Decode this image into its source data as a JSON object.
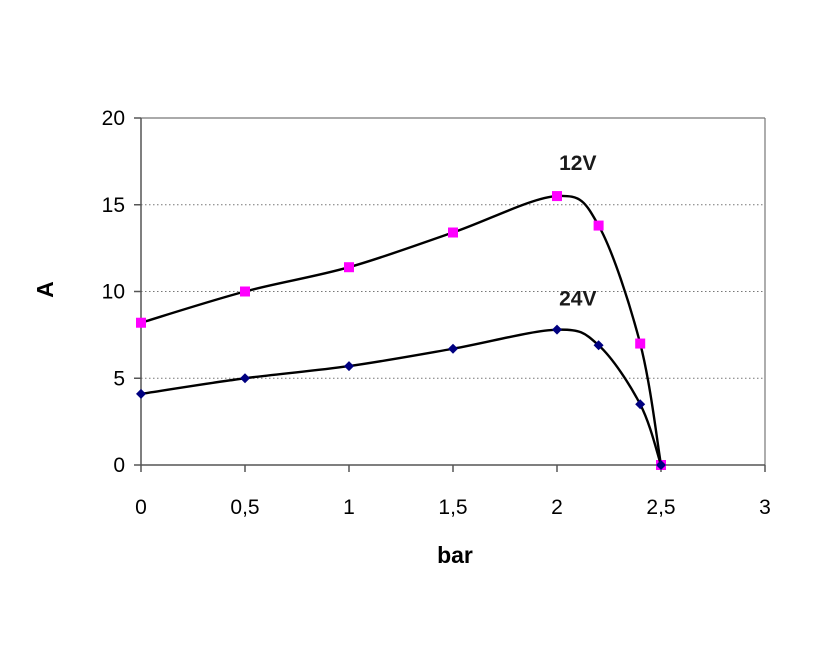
{
  "chart_data": {
    "type": "line",
    "title": "",
    "xlabel": "bar",
    "ylabel": "A",
    "xlim": [
      0,
      3
    ],
    "ylim": [
      0,
      20
    ],
    "x_ticks": [
      0,
      0.5,
      1,
      1.5,
      2,
      2.5,
      3
    ],
    "x_tick_labels": [
      "0",
      "0,5",
      "1",
      "1,5",
      "2",
      "2,5",
      "3"
    ],
    "y_ticks": [
      0,
      5,
      10,
      15,
      20
    ],
    "y_tick_labels": [
      "0",
      "5",
      "10",
      "15",
      "20"
    ],
    "grid": "horizontal dotted",
    "series": [
      {
        "name": "12V",
        "label": "12V",
        "marker": "square",
        "marker_color": "#ff00ff",
        "line_color": "#000000",
        "x": [
          0,
          0.5,
          1,
          1.5,
          2,
          2.2,
          2.4,
          2.5
        ],
        "y": [
          8.2,
          10.0,
          11.4,
          13.4,
          15.5,
          13.8,
          7.0,
          0.0
        ],
        "label_x": 2.1,
        "label_y": 17.0
      },
      {
        "name": "24V",
        "label": "24V",
        "marker": "diamond",
        "marker_color": "#000080",
        "line_color": "#000000",
        "x": [
          0,
          0.5,
          1,
          1.5,
          2,
          2.2,
          2.4,
          2.5
        ],
        "y": [
          4.1,
          5.0,
          5.7,
          6.7,
          7.8,
          6.9,
          3.5,
          0.0
        ],
        "label_x": 2.1,
        "label_y": 9.2
      }
    ]
  }
}
